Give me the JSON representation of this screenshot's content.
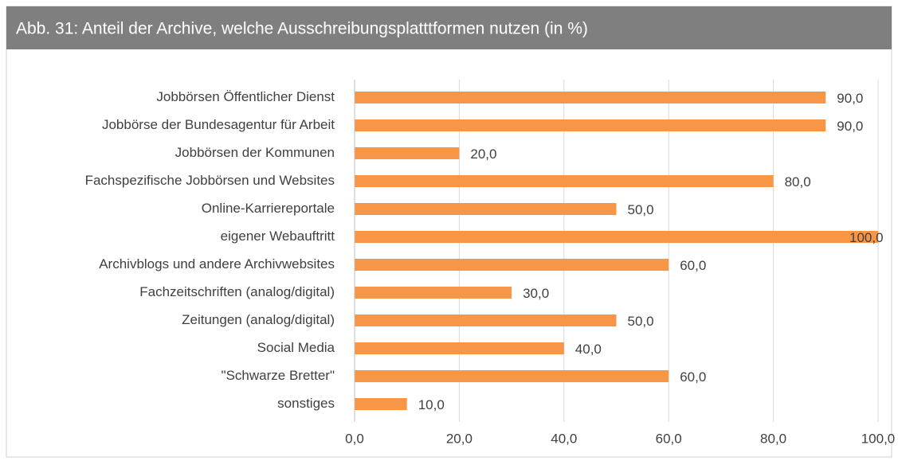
{
  "chart_data": {
    "type": "bar",
    "orientation": "horizontal",
    "title": "Abb. 31: Anteil der Archive, welche Ausschreibungsplatttformen nutzen (in %)",
    "categories": [
      "Jobbörsen Öffentlicher Dienst",
      "Jobbörse der Bundesagentur für Arbeit",
      "Jobbörsen der Kommunen",
      "Fachspezifische Jobbörsen und Websites",
      "Online-Karriereportale",
      "eigener Webauftritt",
      "Archivblogs und andere Archivwebsites",
      "Fachzeitschriften (analog/digital)",
      "Zeitungen (analog/digital)",
      "Social Media",
      "\"Schwarze Bretter\"",
      "sonstiges"
    ],
    "values": [
      90,
      90,
      20,
      80,
      50,
      100,
      60,
      30,
      50,
      40,
      60,
      10
    ],
    "value_labels": [
      "90,0",
      "90,0",
      "20,0",
      "80,0",
      "50,0",
      "100,0",
      "60,0",
      "30,0",
      "50,0",
      "40,0",
      "60,0",
      "10,0"
    ],
    "color": "#f79646",
    "xlim": [
      0,
      100
    ],
    "xticks": [
      {
        "value": 0,
        "label": "0,0"
      },
      {
        "value": 20,
        "label": "20,0"
      },
      {
        "value": 40,
        "label": "40,0"
      },
      {
        "value": 60,
        "label": "60,0"
      },
      {
        "value": 80,
        "label": "80,0"
      },
      {
        "value": 100,
        "label": "100,0"
      }
    ],
    "grid": true
  }
}
